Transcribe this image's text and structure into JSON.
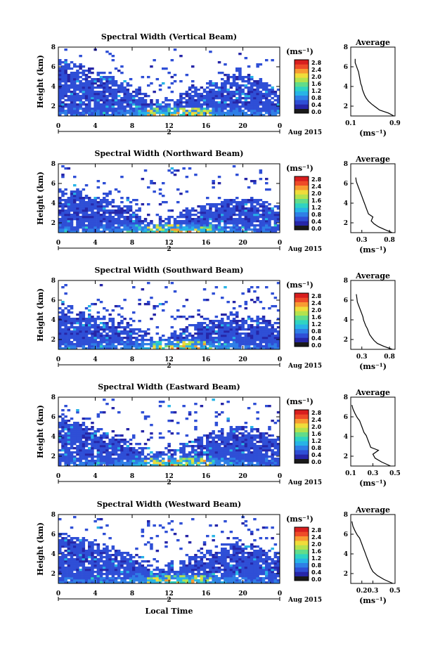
{
  "figure": {
    "xlabel": "Local Time",
    "colorbar_ticks": [
      "0.0",
      "0.4",
      "0.8",
      "1.2",
      "1.6",
      "2.0",
      "2.4",
      "2.8"
    ],
    "colorbar_unit": "(ms⁻¹)",
    "colorscale": [
      "#1a1a1a",
      "#2626a8",
      "#2f4fd6",
      "#2f7fe6",
      "#28b4e6",
      "#2fd3c2",
      "#62dc8a",
      "#b4e24e",
      "#f0dc3a",
      "#f89a32",
      "#ee4b28",
      "#d81e1e"
    ],
    "date_label": "Aug 2015",
    "day_label": "2",
    "x_ticks": [
      "0",
      "4",
      "8",
      "12",
      "16",
      "20",
      "0"
    ],
    "y_ticks": [
      "2",
      "4",
      "6",
      "8"
    ],
    "avg_title": "Average",
    "avg_unit": "(ms⁻¹)"
  },
  "chart_data": [
    {
      "type": "heatmap",
      "title": "Spectral Width (Vertical Beam)",
      "ylabel": "Height (km)",
      "xlim": [
        0,
        24
      ],
      "ylim": [
        1,
        8
      ],
      "cloud_top_km": [
        6.8,
        6.6,
        6.4,
        6.0,
        5.6,
        5.2,
        4.8,
        4.4,
        3.9,
        3.4,
        2.8,
        2.6,
        2.9,
        3.6,
        4.1,
        4.3,
        4.6,
        5.0,
        5.3,
        5.4,
        5.3,
        5.0,
        4.6,
        4.0
      ],
      "scattered_top_km": [
        8.0,
        7.0,
        6.8,
        6.6,
        6.0,
        5.6,
        7.8,
        5.0,
        4.5,
        5.2,
        7.6,
        7.9,
        8.0,
        7.5,
        5.0,
        4.8,
        5.2,
        7.4,
        6.8,
        6.0,
        7.8,
        8.0,
        7.5,
        7.0
      ],
      "avg_profile": {
        "xlim": [
          0.1,
          0.9
        ],
        "xticks": [
          "0.1",
          "0.9"
        ],
        "x": [
          0.88,
          0.78,
          0.62,
          0.55,
          0.48,
          0.42,
          0.38,
          0.35,
          0.33,
          0.31,
          0.3,
          0.28,
          0.27,
          0.26,
          0.25,
          0.24,
          0.22,
          0.2,
          0.18,
          0.18
        ],
        "y": [
          1.0,
          1.3,
          1.6,
          1.9,
          2.2,
          2.5,
          2.8,
          3.1,
          3.4,
          3.7,
          4.0,
          4.3,
          4.6,
          4.9,
          5.2,
          5.5,
          5.8,
          6.1,
          6.4,
          6.8
        ]
      }
    },
    {
      "type": "heatmap",
      "title": "Spectral Width (Northward Beam)",
      "ylabel": "Height (km)",
      "xlim": [
        0,
        24
      ],
      "ylim": [
        1,
        8
      ],
      "cloud_top_km": [
        5.6,
        5.4,
        5.2,
        5.0,
        4.8,
        4.5,
        4.2,
        3.8,
        3.4,
        3.0,
        2.6,
        2.5,
        2.8,
        3.3,
        3.6,
        3.8,
        4.0,
        4.3,
        4.6,
        4.8,
        4.7,
        4.5,
        4.2,
        3.8
      ],
      "scattered_top_km": [
        8.0,
        6.6,
        6.4,
        6.2,
        7.2,
        5.4,
        7.0,
        4.8,
        4.4,
        7.5,
        6.2,
        7.8,
        8.0,
        7.0,
        4.6,
        4.6,
        7.9,
        7.2,
        6.4,
        5.6,
        8.0,
        7.6,
        7.0,
        6.6
      ],
      "avg_profile": {
        "xlim": [
          0.1,
          0.9
        ],
        "xticks": [
          "0.3",
          "0.8"
        ],
        "x": [
          0.85,
          0.72,
          0.6,
          0.52,
          0.47,
          0.5,
          0.42,
          0.4,
          0.38,
          0.36,
          0.34,
          0.32,
          0.3,
          0.28,
          0.26,
          0.24,
          0.22,
          0.2,
          0.19
        ],
        "y": [
          1.0,
          1.3,
          1.6,
          1.9,
          2.2,
          2.6,
          2.9,
          3.2,
          3.5,
          3.8,
          4.1,
          4.4,
          4.7,
          5.0,
          5.3,
          5.6,
          5.9,
          6.2,
          6.6
        ]
      }
    },
    {
      "type": "heatmap",
      "title": "Spectral Width (Southward Beam)",
      "ylabel": "Height (km)",
      "xlim": [
        0,
        24
      ],
      "ylim": [
        1,
        8
      ],
      "cloud_top_km": [
        5.4,
        5.2,
        5.0,
        4.8,
        4.6,
        4.3,
        4.0,
        3.6,
        3.2,
        2.9,
        2.6,
        2.6,
        2.8,
        3.2,
        3.6,
        3.9,
        4.2,
        4.5,
        4.8,
        4.9,
        4.8,
        4.6,
        4.3,
        3.9
      ],
      "scattered_top_km": [
        8.0,
        6.6,
        6.2,
        7.0,
        7.2,
        5.2,
        6.8,
        4.8,
        4.4,
        7.5,
        6.0,
        7.7,
        8.0,
        7.8,
        5.0,
        7.4,
        8.0,
        7.6,
        7.2,
        6.4,
        8.0,
        7.8,
        7.2,
        6.8
      ],
      "avg_profile": {
        "xlim": [
          0.1,
          0.9
        ],
        "xticks": [
          "0.3",
          "0.8"
        ],
        "x": [
          0.85,
          0.7,
          0.58,
          0.52,
          0.48,
          0.44,
          0.42,
          0.4,
          0.37,
          0.35,
          0.33,
          0.32,
          0.3,
          0.28,
          0.26,
          0.24,
          0.22,
          0.21,
          0.2
        ],
        "y": [
          1.0,
          1.3,
          1.6,
          1.9,
          2.2,
          2.5,
          2.8,
          3.1,
          3.4,
          3.7,
          4.0,
          4.3,
          4.6,
          4.9,
          5.2,
          5.5,
          5.8,
          6.2,
          6.6
        ]
      }
    },
    {
      "type": "heatmap",
      "title": "Spectral Width (Eastward Beam)",
      "ylabel": "Height (km)",
      "xlim": [
        0,
        24
      ],
      "ylim": [
        1,
        8
      ],
      "cloud_top_km": [
        5.8,
        5.6,
        5.4,
        5.2,
        4.9,
        4.6,
        4.2,
        3.8,
        3.4,
        3.0,
        2.7,
        2.6,
        2.9,
        3.5,
        4.0,
        4.3,
        4.6,
        4.9,
        5.1,
        5.2,
        5.1,
        4.9,
        4.6,
        4.2
      ],
      "scattered_top_km": [
        8.0,
        6.8,
        6.6,
        6.4,
        7.2,
        5.4,
        7.2,
        5.0,
        4.6,
        7.6,
        6.4,
        7.8,
        8.0,
        7.9,
        7.4,
        5.0,
        8.0,
        7.6,
        7.0,
        6.2,
        7.8,
        8.0,
        7.4,
        6.8
      ],
      "avg_profile": {
        "xlim": [
          0.1,
          0.5
        ],
        "xticks": [
          "0.1",
          "0.3",
          "0.5"
        ],
        "x": [
          0.46,
          0.38,
          0.32,
          0.3,
          0.35,
          0.28,
          0.27,
          0.26,
          0.25,
          0.24,
          0.22,
          0.21,
          0.2,
          0.19,
          0.18,
          0.16,
          0.14,
          0.12,
          0.11
        ],
        "y": [
          1.0,
          1.4,
          1.8,
          2.2,
          2.6,
          2.9,
          3.2,
          3.5,
          3.8,
          4.1,
          4.4,
          4.7,
          5.0,
          5.3,
          5.6,
          5.9,
          6.3,
          6.8,
          7.2
        ]
      }
    },
    {
      "type": "heatmap",
      "title": "Spectral Width (Westward Beam)",
      "ylabel": "Height (km)",
      "xlim": [
        0,
        24
      ],
      "ylim": [
        1,
        8
      ],
      "cloud_top_km": [
        6.2,
        6.0,
        5.8,
        5.5,
        5.2,
        4.9,
        4.6,
        4.2,
        3.8,
        3.4,
        3.0,
        2.8,
        3.0,
        3.5,
        4.0,
        4.3,
        4.6,
        4.9,
        5.2,
        5.3,
        5.2,
        5.0,
        4.7,
        4.3
      ],
      "scattered_top_km": [
        8.0,
        7.2,
        6.8,
        6.6,
        7.4,
        5.8,
        7.6,
        5.2,
        4.8,
        7.6,
        6.6,
        7.8,
        8.0,
        7.6,
        7.4,
        5.2,
        8.0,
        7.7,
        7.4,
        6.6,
        7.9,
        8.0,
        7.6,
        7.2
      ],
      "avg_profile": {
        "xlim": [
          0.1,
          0.5
        ],
        "xticks": [
          "0.2",
          "0.3",
          "0.5"
        ],
        "x": [
          0.48,
          0.4,
          0.34,
          0.3,
          0.28,
          0.27,
          0.26,
          0.25,
          0.24,
          0.23,
          0.22,
          0.21,
          0.2,
          0.19,
          0.18,
          0.16,
          0.14,
          0.12,
          0.11
        ],
        "y": [
          1.0,
          1.4,
          1.8,
          2.2,
          2.6,
          2.9,
          3.2,
          3.5,
          3.8,
          4.1,
          4.4,
          4.7,
          5.0,
          5.3,
          5.6,
          5.9,
          6.3,
          6.8,
          7.3
        ]
      }
    }
  ]
}
